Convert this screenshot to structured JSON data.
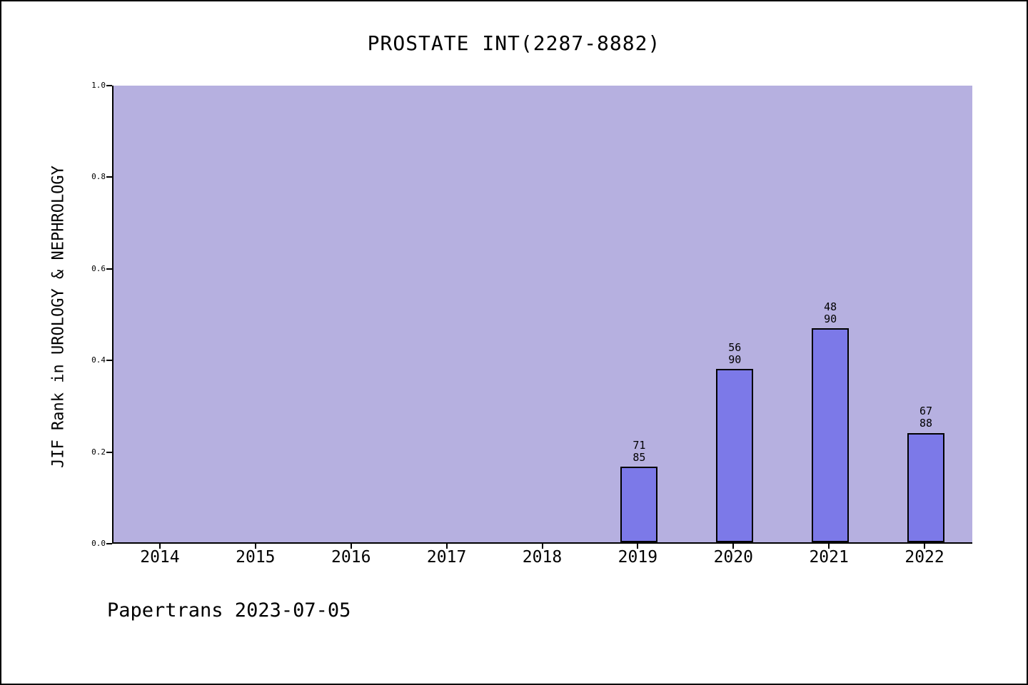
{
  "title": "PROSTATE INT(2287-8882)",
  "footer": "Papertrans 2023-07-05",
  "colors": {
    "plot_bg": "#b6b0e0",
    "bar_fill": "#7c79e8",
    "bar_edge": "#000000"
  },
  "chart_data": {
    "type": "bar",
    "title": "PROSTATE INT(2287-8882)",
    "ylabel": "JIF Rank in UROLOGY & NEPHROLOGY",
    "xlabel": "",
    "categories": [
      "2014",
      "2015",
      "2016",
      "2017",
      "2018",
      "2019",
      "2020",
      "2021",
      "2022"
    ],
    "values": [
      null,
      null,
      null,
      null,
      null,
      0.165,
      0.378,
      0.467,
      0.239
    ],
    "annotations": [
      null,
      null,
      null,
      null,
      null,
      {
        "rank": "71",
        "total": "85"
      },
      {
        "rank": "56",
        "total": "90"
      },
      {
        "rank": "48",
        "total": "90"
      },
      {
        "rank": "67",
        "total": "88"
      }
    ],
    "ylim": [
      0.0,
      1.0
    ],
    "yticks": [
      0.0,
      0.2,
      0.4,
      0.6,
      0.8,
      1.0
    ],
    "ytick_labels": [
      "0.0",
      "0.2",
      "0.4",
      "0.6",
      "0.8",
      "1.0"
    ],
    "grid": false,
    "legend": null
  }
}
